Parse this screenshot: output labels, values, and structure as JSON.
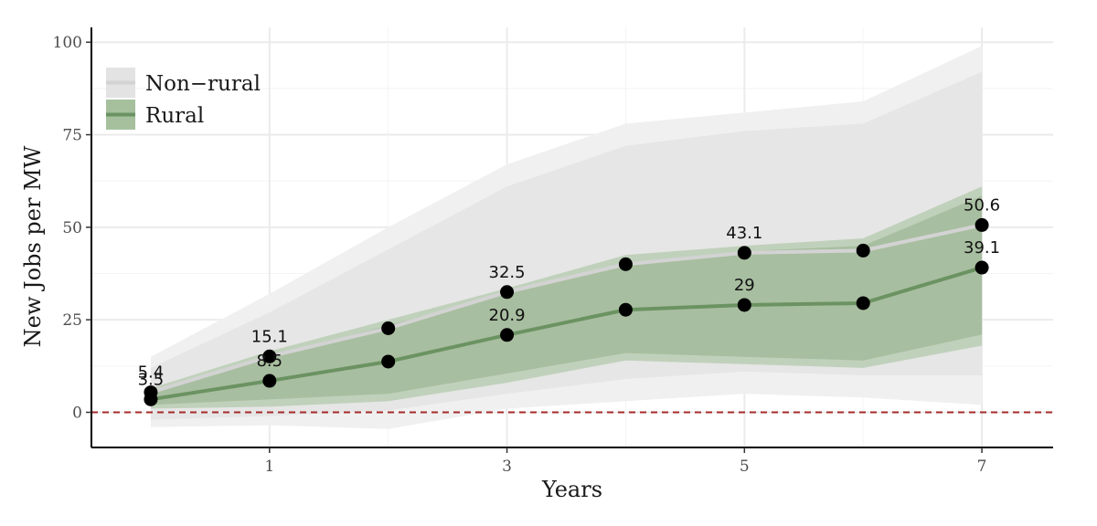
{
  "chart_data": {
    "type": "line",
    "title": "",
    "xlabel": "Years",
    "ylabel": "New Jobs per MW",
    "xlim": [
      -0.5,
      7.6
    ],
    "ylim": [
      -9.5,
      104
    ],
    "x": [
      0,
      1,
      2,
      3,
      4,
      5,
      6,
      7
    ],
    "x_ticks": [
      1,
      3,
      5,
      7
    ],
    "x_tick_labels": [
      "1",
      "3",
      "5",
      "7"
    ],
    "y_ticks": [
      0,
      25,
      50,
      75,
      100
    ],
    "y_tick_labels": [
      "0",
      "25",
      "50",
      "75",
      "100"
    ],
    "reference_line": {
      "y": 0,
      "style": "dashed",
      "color": "#a52a2a"
    },
    "legend": {
      "position": "top-left",
      "entries": [
        "Non−rural",
        "Rural"
      ]
    },
    "series": [
      {
        "name": "Non−rural",
        "color": "#d3d3d3",
        "values": [
          5.4,
          15.1,
          22.7,
          32.5,
          40.0,
          43.1,
          43.7,
          50.6
        ],
        "labels": [
          "5.4",
          "15.1",
          "",
          "32.5",
          "",
          "43.1",
          "",
          "50.6"
        ],
        "ci_outer_lower": [
          -4.0,
          -3.5,
          -4.5,
          1.0,
          3.0,
          5.0,
          4.0,
          2.0
        ],
        "ci_outer_upper": [
          15.0,
          32.0,
          50.0,
          67.0,
          78.0,
          81.0,
          84.0,
          99.0
        ],
        "ci_inner_lower": [
          -2.0,
          -1.0,
          0.5,
          5.0,
          9.0,
          11.0,
          10.0,
          10.0
        ],
        "ci_inner_upper": [
          12.0,
          27.0,
          44.0,
          61.0,
          72.0,
          76.0,
          78.0,
          92.0
        ]
      },
      {
        "name": "Rural",
        "color": "#6b9362",
        "values": [
          3.5,
          8.5,
          13.7,
          20.9,
          27.7,
          29.0,
          29.5,
          39.1
        ],
        "labels": [
          "3.5",
          "8.5",
          "",
          "20.9",
          "",
          "29",
          "",
          "39.1"
        ],
        "ci_outer_lower": [
          1.0,
          1.5,
          3.0,
          8.0,
          14.0,
          13.0,
          12.0,
          18.0
        ],
        "ci_outer_upper": [
          6.5,
          16.5,
          25.0,
          33.5,
          42.5,
          45.0,
          47.0,
          61.0
        ],
        "ci_inner_lower": [
          2.0,
          3.5,
          5.0,
          10.5,
          16.0,
          15.0,
          14.0,
          21.0
        ],
        "ci_inner_upper": [
          5.5,
          15.0,
          23.5,
          32.0,
          40.5,
          43.5,
          45.0,
          58.5
        ]
      }
    ]
  }
}
